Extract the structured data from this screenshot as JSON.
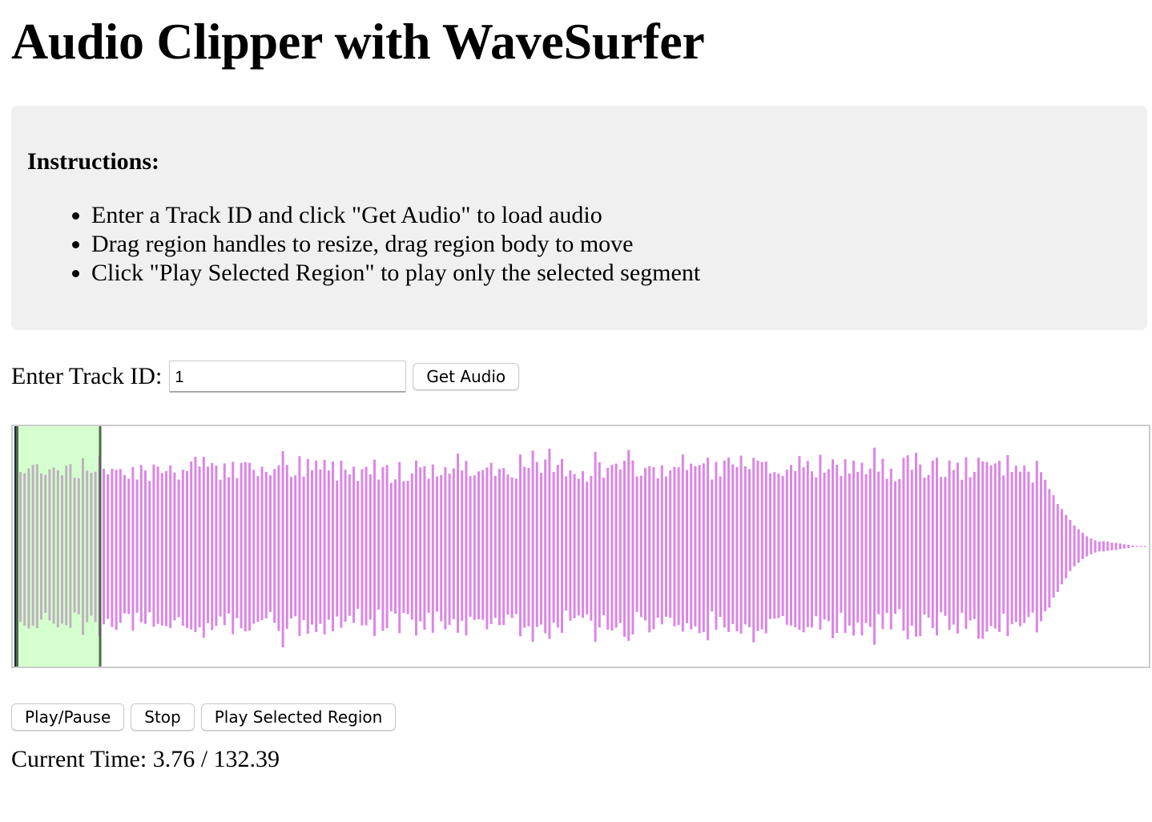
{
  "page": {
    "title": "Audio Clipper with WaveSurfer"
  },
  "instructions": {
    "heading": "Instructions:",
    "items": [
      "Enter a Track ID and click \"Get Audio\" to load audio",
      "Drag region handles to resize, drag region body to move",
      "Click \"Play Selected Region\" to play only the selected segment"
    ]
  },
  "track": {
    "label": "Enter Track ID:",
    "value": "1",
    "button_label": "Get Audio"
  },
  "waveform": {
    "wave_color": "#dc86e6",
    "progress_color": "#bdb2bd",
    "region_color": "#d6ffcf",
    "region_handle_color": "#4f6a4f",
    "cursor_color": "#1b2a3a",
    "region": {
      "start": 0,
      "end": 10
    }
  },
  "controls": {
    "play_pause_label": "Play/Pause",
    "stop_label": "Stop",
    "play_region_label": "Play Selected Region"
  },
  "time": {
    "label": "Current Time:",
    "current": "3.76",
    "duration": "132.39"
  }
}
